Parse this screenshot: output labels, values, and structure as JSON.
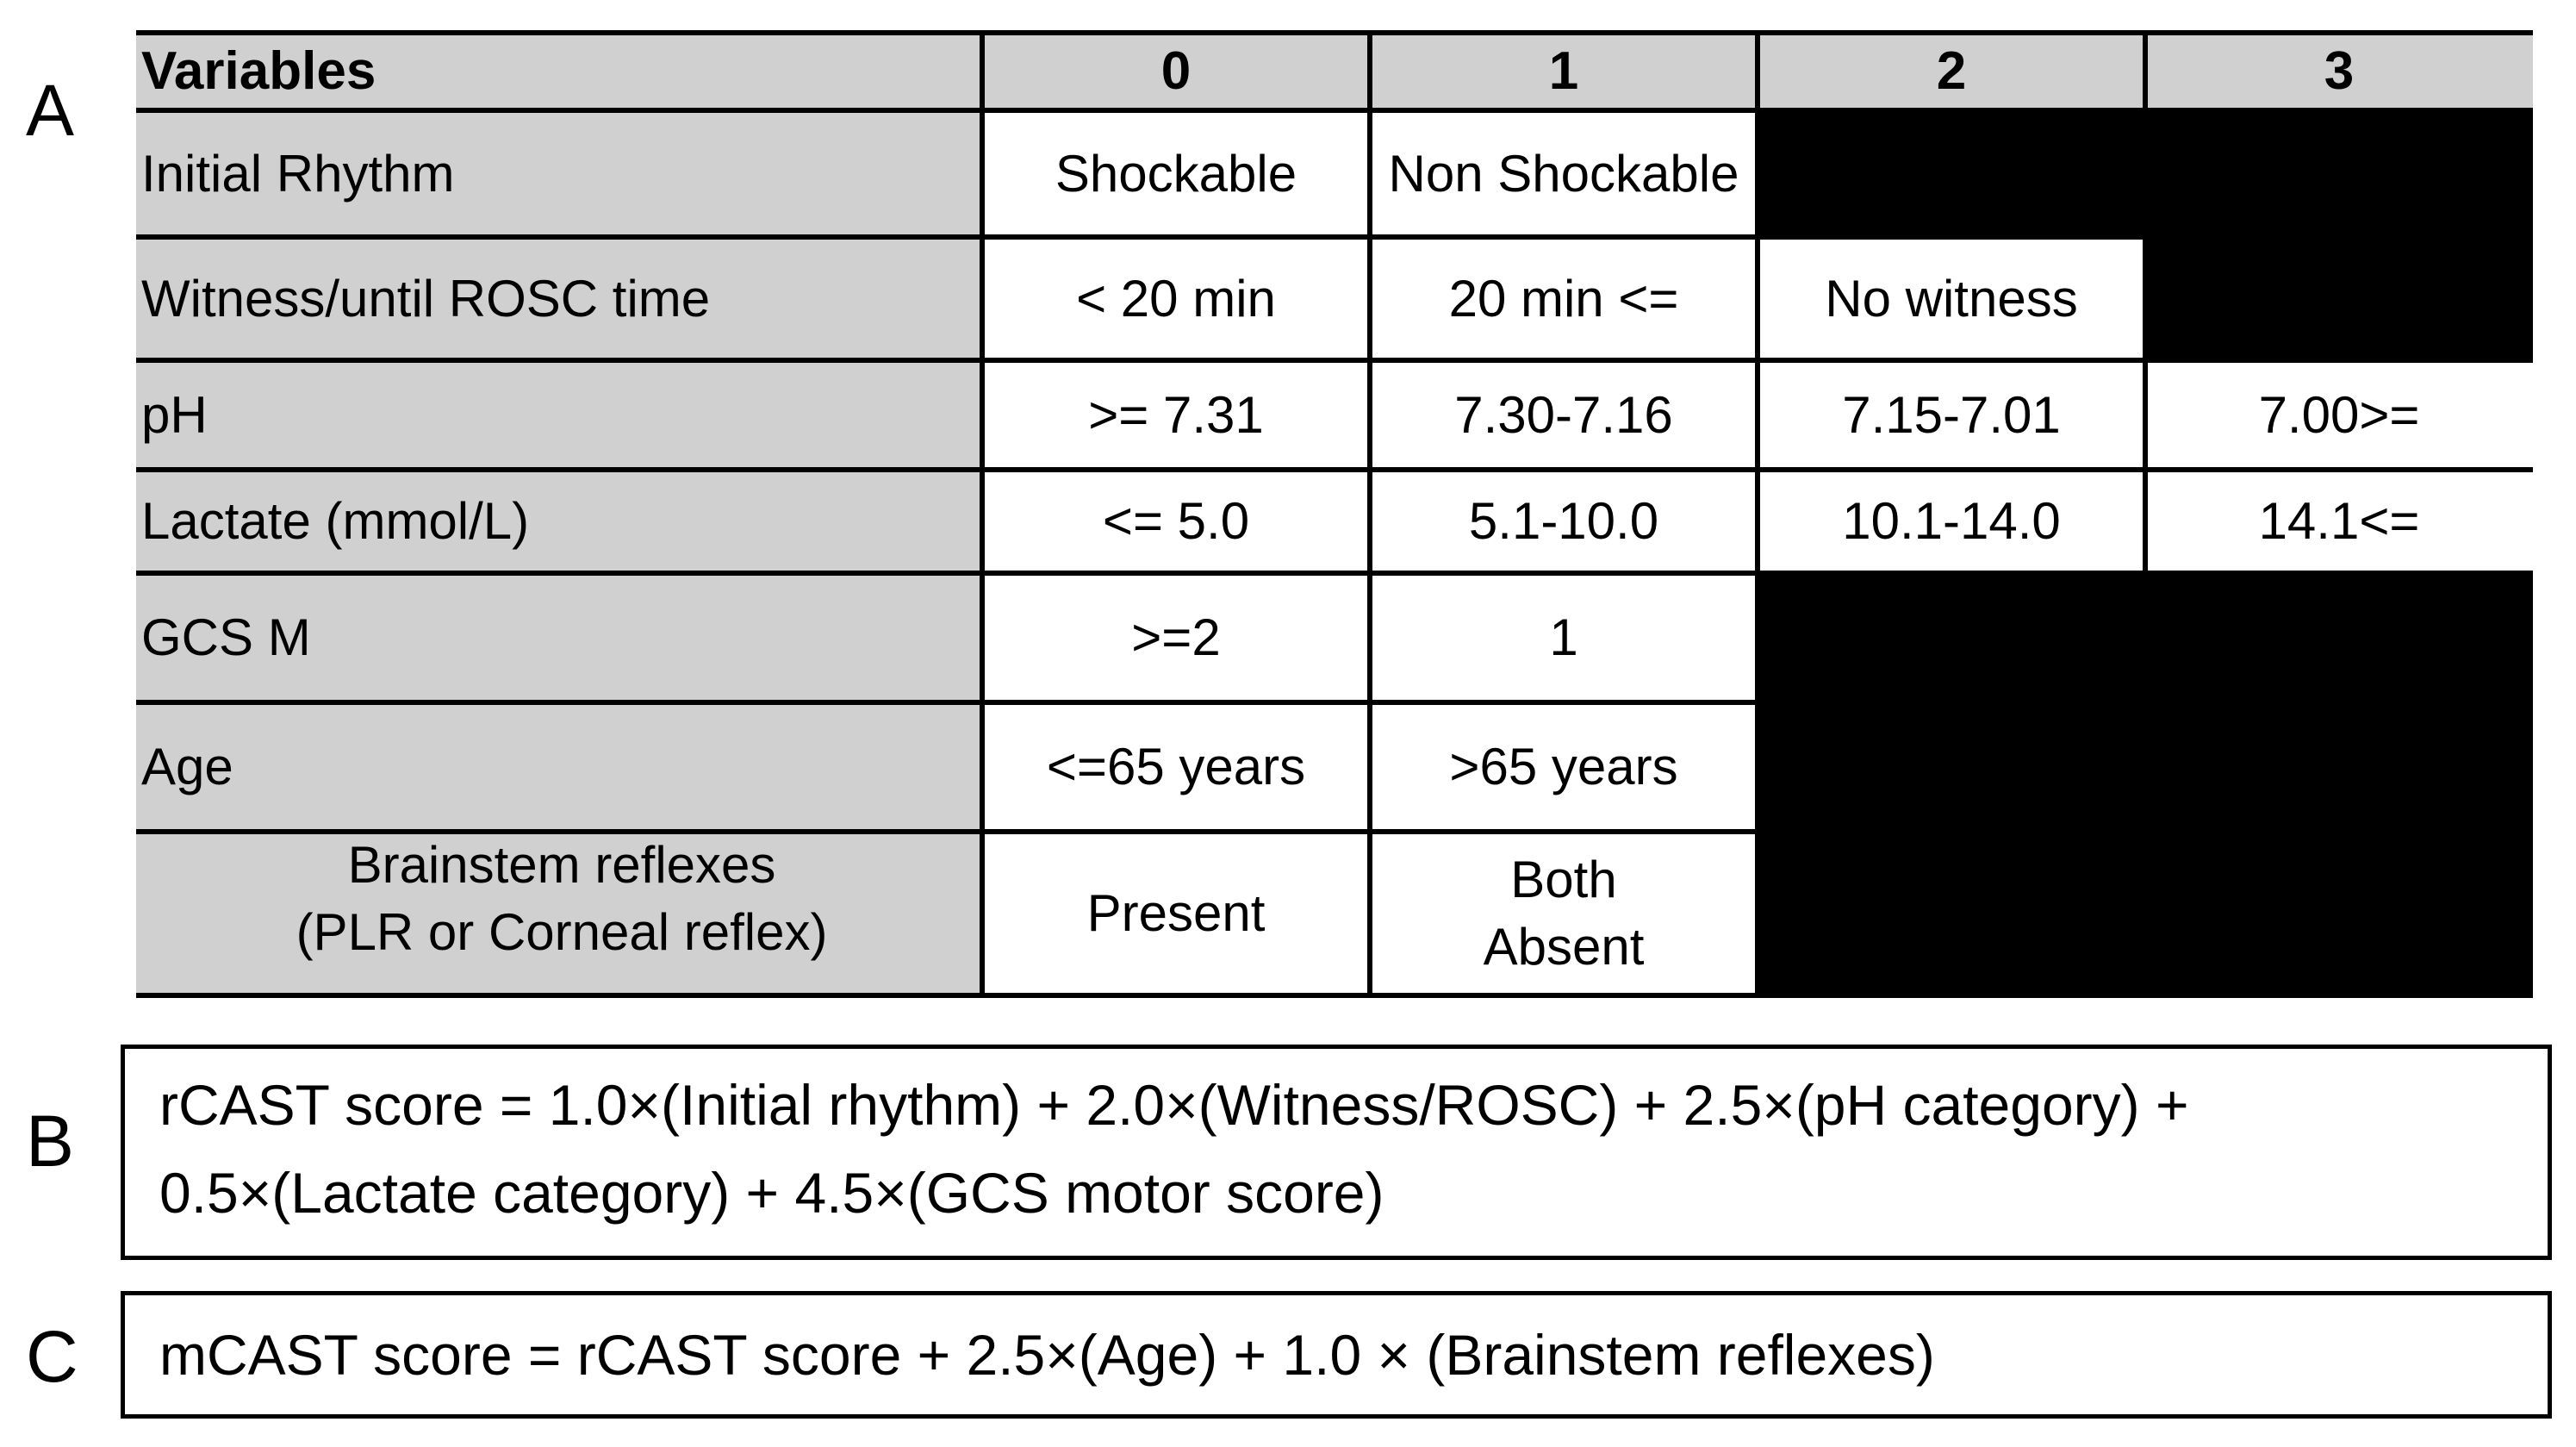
{
  "panels": {
    "a": "A",
    "b": "B",
    "c": "C"
  },
  "table": {
    "headers": [
      "Variables",
      "0",
      "1",
      "2",
      "3"
    ],
    "rows": [
      {
        "label": [
          "Initial Rhythm"
        ],
        "cells": [
          [
            "Shockable"
          ],
          [
            "Non Shockable"
          ],
          null,
          null
        ]
      },
      {
        "label": [
          "Witness/until ROSC time"
        ],
        "cells": [
          [
            "< 20 min"
          ],
          [
            "20 min <="
          ],
          [
            "No witness"
          ],
          null
        ]
      },
      {
        "label": [
          "pH"
        ],
        "cells": [
          [
            ">= 7.31"
          ],
          [
            "7.30-7.16"
          ],
          [
            "7.15-7.01"
          ],
          [
            "7.00>="
          ]
        ]
      },
      {
        "label": [
          "Lactate (mmol/L)"
        ],
        "cells": [
          [
            "<= 5.0"
          ],
          [
            "5.1-10.0"
          ],
          [
            "10.1-14.0"
          ],
          [
            "14.1<="
          ]
        ]
      },
      {
        "label": [
          "GCS M"
        ],
        "cells": [
          [
            ">=2"
          ],
          [
            "1"
          ],
          null,
          null
        ]
      },
      {
        "label": [
          "Age"
        ],
        "cells": [
          [
            "<=65 years"
          ],
          [
            ">65 years"
          ],
          null,
          null
        ]
      },
      {
        "label": [
          "Brainstem reflexes",
          "(PLR or Corneal reflex)"
        ],
        "cells": [
          [
            "Present"
          ],
          [
            "Both",
            "Absent"
          ],
          null,
          null
        ]
      }
    ]
  },
  "formulas": {
    "b": [
      "rCAST score = 1.0×(Initial rhythm) + 2.0×(Witness/ROSC) + 2.5×(pH category) +",
      "0.5×(Lactate category) + 4.5×(GCS motor score)"
    ],
    "c": [
      "mCAST score = rCAST score + 2.5×(Age) + 1.0 × (Brainstem reflexes)"
    ]
  }
}
